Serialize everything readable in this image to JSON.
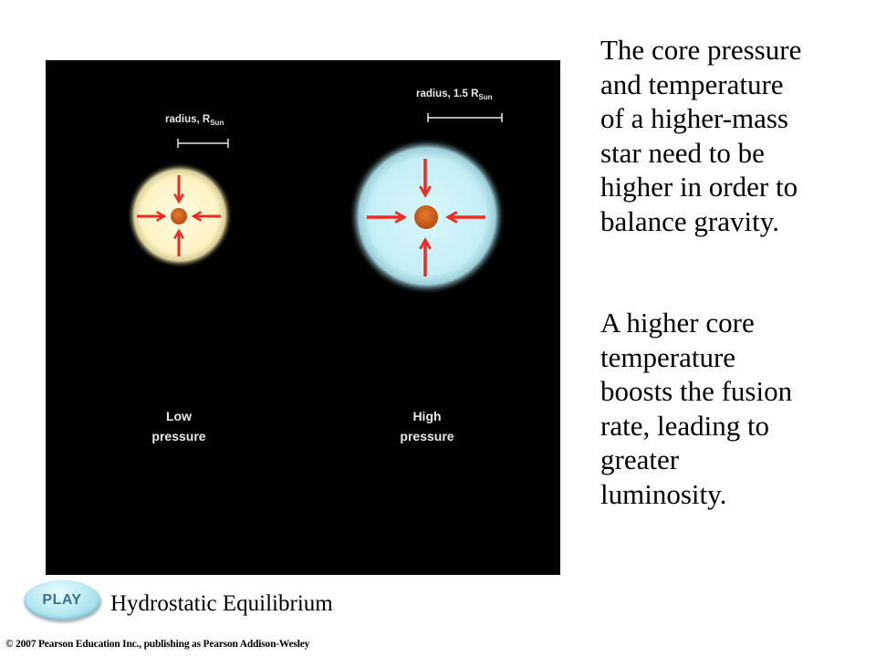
{
  "figure": {
    "left_radius_label": "radius, R",
    "left_radius_sub": "Sun",
    "right_radius_label": "radius, 1.5 R",
    "right_radius_sub": "Sun",
    "left_pressure_line1": "Low",
    "left_pressure_line2": "pressure",
    "right_pressure_line1": "High",
    "right_pressure_line2": "pressure",
    "colors": {
      "background": "#000000",
      "low_star": "#fff6cc",
      "high_star": "#cbf1f7",
      "core": "#d0621a",
      "arrow": "#ee2a24",
      "label": "#e9e9e9"
    }
  },
  "text": {
    "paragraph1": "The core pressure\nand temperature\nof a higher-mass\nstar need to be\nhigher in order to\nbalance gravity.",
    "paragraph2": "A higher core\ntemperature\nboosts the fusion\nrate, leading to\ngreater\nluminosity."
  },
  "play_button": {
    "label": "PLAY"
  },
  "caption": "Hydrostatic Equilibrium",
  "copyright": "© 2007 Pearson Education Inc., publishing as Pearson Addison-Wesley"
}
